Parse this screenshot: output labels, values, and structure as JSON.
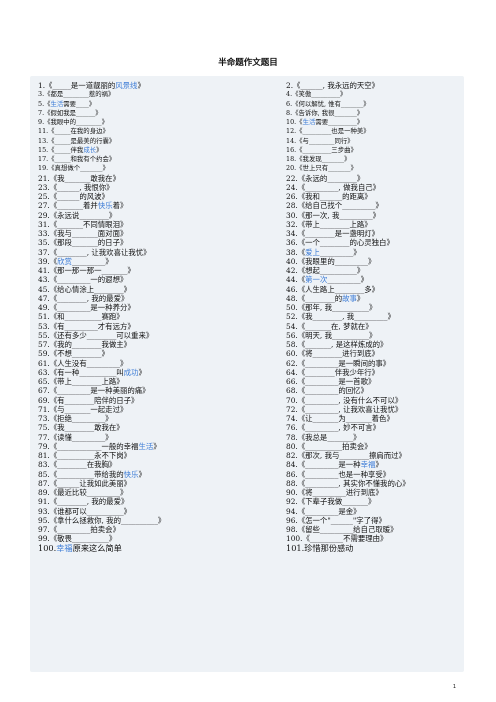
{
  "title": "半命题作文题目",
  "left_items": [
    {
      "text": "1.《_____是一道靓丽的风景线》",
      "size": "n"
    },
    {
      "text": "3.《都是________惹的祸》",
      "size": "s"
    },
    {
      "text": "5.《生活需要____》",
      "size": "s"
    },
    {
      "text": "7.《假如我是______》",
      "size": "s"
    },
    {
      "text": "9.《我眼中的________》",
      "size": "s"
    },
    {
      "text": "11.《_____在我的身边》",
      "size": "s"
    },
    {
      "text": "13.《_____是最美的行囊》",
      "size": "s"
    },
    {
      "text": "15.《_____伴我成长》",
      "size": "s"
    },
    {
      "text": "17.《_____和我有个约会》",
      "size": "s"
    },
    {
      "text": "19.《真想做个_______》",
      "size": "s"
    },
    {
      "text": "21.《我_______敢我在》",
      "size": "n"
    },
    {
      "text": "23.《______, 我恨你》",
      "size": "n"
    },
    {
      "text": "25.《______的风波》",
      "size": "n"
    },
    {
      "text": "27.《_______着并快乐着》",
      "size": "n"
    },
    {
      "text": "29.《永远说________》",
      "size": "n"
    },
    {
      "text": "31.《_______不同情眼泪》",
      "size": "n"
    },
    {
      "text": "33.《我与_______面对面》",
      "size": "n"
    },
    {
      "text": "35.《那段_______的日子》",
      "size": "n"
    },
    {
      "text": "37.《________, 让我欢喜让我忧》",
      "size": "n"
    },
    {
      "text": "39.《欣赏_________》",
      "size": "n"
    },
    {
      "text": "41.《那一那一那一_______》",
      "size": "n"
    },
    {
      "text": "43.《_________一的遐想》",
      "size": "n"
    },
    {
      "text": "45.《给心情涂上________》",
      "size": "n"
    },
    {
      "text": "47.《________, 我的最爱》",
      "size": "n"
    },
    {
      "text": "49.《_________是一种养分》",
      "size": "n"
    },
    {
      "text": "51.《和__________赛跑》",
      "size": "n"
    },
    {
      "text": "53.《有_________才有远方》",
      "size": "n"
    },
    {
      "text": "55.《还有多少________可以重来》",
      "size": "n"
    },
    {
      "text": "57.《我的________我做主》",
      "size": "n"
    },
    {
      "text": "59.《不想________》",
      "size": "n"
    },
    {
      "text": "61.《人生没有_________》",
      "size": "n"
    },
    {
      "text": "63.《有一种__________叫成功》",
      "size": "n"
    },
    {
      "text": "65.《带上________上路》",
      "size": "n"
    },
    {
      "text": "67.《_________是一种美丽的痛》",
      "size": "n"
    },
    {
      "text": "69.《有________陪伴的日子》",
      "size": "n"
    },
    {
      "text": "71.《与_______一起走过》",
      "size": "n"
    },
    {
      "text": "73.《拒绝_________》",
      "size": "n"
    },
    {
      "text": "75.《我________敢我在》",
      "size": "n"
    },
    {
      "text": "77.《读懂_________》",
      "size": "n"
    },
    {
      "text": "79.《____________一般的幸福生活》",
      "size": "n"
    },
    {
      "text": "81.《__________永不下岗》",
      "size": "n"
    },
    {
      "text": "83.《________在我胸》",
      "size": "n"
    },
    {
      "text": "85.《__________带给我的快乐》",
      "size": "n"
    },
    {
      "text": "87.《______让我如此美丽》",
      "size": "n"
    },
    {
      "text": "89.《最近比较_________》",
      "size": "n"
    },
    {
      "text": "91.《________, 我的最爱》",
      "size": "n"
    },
    {
      "text": "93.《谁都可以__________》",
      "size": "n"
    },
    {
      "text": "95.《拿什么拯救你, 我的__________》",
      "size": "n"
    },
    {
      "text": "97.《_________拍卖会》",
      "size": "n"
    },
    {
      "text": "99.《敬畏__________》",
      "size": "n"
    },
    {
      "text": "100.幸福原来这么简单",
      "size": "b"
    }
  ],
  "right_items": [
    {
      "text": "2.《______, 我永远的天空》",
      "size": "n"
    },
    {
      "text": "4.《笑傲_________》",
      "size": "s"
    },
    {
      "text": "6.《何以解忧, 惟有_______》",
      "size": "s"
    },
    {
      "text": "8.《告诉你, 我很_______》",
      "size": "s"
    },
    {
      "text": "10.《生活需要_________》",
      "size": "s"
    },
    {
      "text": "12.《_________也是一种美》",
      "size": "s"
    },
    {
      "text": "14.《与________同行》",
      "size": "s"
    },
    {
      "text": "16.《_________三步曲》",
      "size": "s"
    },
    {
      "text": "18.《我发现_______》",
      "size": "s"
    },
    {
      "text": "20.《世上只有_______》",
      "size": "s"
    },
    {
      "text": "22.《永远的________》",
      "size": "n"
    },
    {
      "text": "24.《_________, 做我自己》",
      "size": "n"
    },
    {
      "text": "26.《我和______的距离》",
      "size": "n"
    },
    {
      "text": "28.《给自己找个_________》",
      "size": "n"
    },
    {
      "text": "30.《那一次, 我_________》",
      "size": "n"
    },
    {
      "text": "32.《带上________上路》",
      "size": "n"
    },
    {
      "text": "34.《________是一盏明灯》",
      "size": "n"
    },
    {
      "text": "36.《一个________的心灵独白》",
      "size": "n"
    },
    {
      "text": "38.《爱上_________》",
      "size": "n"
    },
    {
      "text": "40.《我眼里的_________》",
      "size": "n"
    },
    {
      "text": "42.《想起__________》",
      "size": "n"
    },
    {
      "text": "44.《第一次_________》",
      "size": "n"
    },
    {
      "text": "46.《人生路上________多》",
      "size": "n"
    },
    {
      "text": "48.《________的故事》",
      "size": "n"
    },
    {
      "text": "50.《那年, 我__________》",
      "size": "n"
    },
    {
      "text": "52.《我________, 我_________》",
      "size": "n"
    },
    {
      "text": "54.《_______在, 梦就在》",
      "size": "n"
    },
    {
      "text": "56.《明天, 我__________》",
      "size": "n"
    },
    {
      "text": "58.《_______, 是这样炼成的》",
      "size": "n"
    },
    {
      "text": "60.《将________进行到底》",
      "size": "n"
    },
    {
      "text": "62.《_________是一瞬间的事》",
      "size": "n"
    },
    {
      "text": "64.《________伴我少年行》",
      "size": "n"
    },
    {
      "text": "66.《_________是一首歌》",
      "size": "n"
    },
    {
      "text": "68.《_________的回忆》",
      "size": "n"
    },
    {
      "text": "70.《_________, 没有什么不可以》",
      "size": "n"
    },
    {
      "text": "72.《_________, 让我欢喜让我忧》",
      "size": "n"
    },
    {
      "text": "74.《让_______为_______着色》",
      "size": "n"
    },
    {
      "text": "76.《_________, 妙不可言》",
      "size": "n"
    },
    {
      "text": "78.《我总是_______》",
      "size": "n"
    },
    {
      "text": "80.《__________拍卖会》",
      "size": "n"
    },
    {
      "text": "82.《那次, 我与________擦肩而过》",
      "size": "n"
    },
    {
      "text": "84.《_________是一种幸福》",
      "size": "n"
    },
    {
      "text": "86.《_________也是一种享受》",
      "size": "n"
    },
    {
      "text": "88.《_________, 其实你不懂我的心》",
      "size": "n"
    },
    {
      "text": "90.《将_________进行到底》",
      "size": "n"
    },
    {
      "text": "92.《下辈子我做_______》",
      "size": "n"
    },
    {
      "text": "94.《_________是金》",
      "size": "n"
    },
    {
      "text": "96.《怎一个\"______\"字了得》",
      "size": "n"
    },
    {
      "text": "98.《留些_________给自己取暖》",
      "size": "n"
    },
    {
      "text": "100.《_________不需要理由》",
      "size": "n"
    },
    {
      "text": "101.珍惜那份感动",
      "size": "b"
    }
  ],
  "page_number": "1"
}
